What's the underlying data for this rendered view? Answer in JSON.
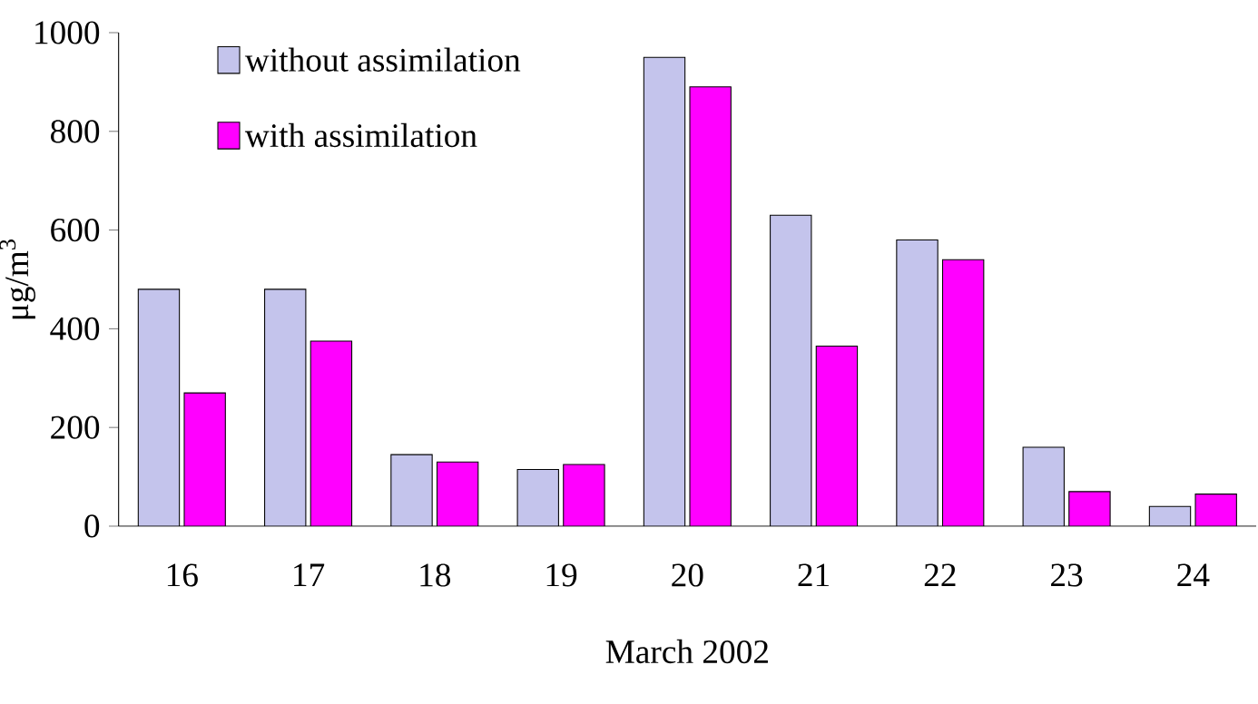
{
  "chart_data": {
    "type": "bar",
    "xlabel": "March 2002",
    "ylabel": "μg/m$^{3}$",
    "categories": [
      "16",
      "17",
      "18",
      "19",
      "20",
      "21",
      "22",
      "23",
      "24"
    ],
    "series": [
      {
        "name": "without assimilation",
        "color": "#c4c4ec",
        "values": [
          480,
          480,
          145,
          115,
          950,
          630,
          580,
          160,
          40
        ]
      },
      {
        "name": "with assimilation",
        "color": "#ff00ff",
        "values": [
          270,
          375,
          130,
          125,
          890,
          365,
          540,
          70,
          65
        ]
      }
    ],
    "ylim": [
      0,
      1000
    ],
    "yticks": [
      0,
      200,
      400,
      600,
      800,
      1000
    ],
    "legend": "top left",
    "grid": false
  }
}
